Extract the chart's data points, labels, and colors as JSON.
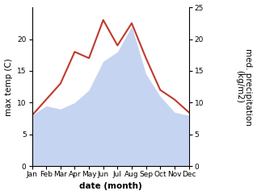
{
  "months": [
    "Jan",
    "Feb",
    "Mar",
    "Apr",
    "May",
    "Jun",
    "Jul",
    "Aug",
    "Sep",
    "Oct",
    "Nov",
    "Dec"
  ],
  "month_positions": [
    1,
    2,
    3,
    4,
    5,
    6,
    7,
    8,
    9,
    10,
    11,
    12
  ],
  "temperature": [
    8.0,
    10.5,
    13.0,
    18.0,
    17.0,
    23.0,
    19.0,
    22.5,
    17.0,
    12.0,
    10.5,
    8.5
  ],
  "precipitation": [
    8.0,
    9.5,
    9.0,
    10.0,
    12.0,
    16.5,
    18.0,
    22.0,
    14.5,
    11.0,
    8.5,
    8.0
  ],
  "temp_color": "#c0392b",
  "precip_fill_color": "#c5d4f0",
  "left_ylabel": "max temp (C)",
  "right_ylabel": "med. precipitation\n(kg/m2)",
  "xlabel": "date (month)",
  "ylim_left": [
    0,
    25
  ],
  "ylim_right": [
    0,
    25
  ],
  "yticks_left": [
    0,
    5,
    10,
    15,
    20
  ],
  "yticks_right": [
    0,
    5,
    10,
    15,
    20,
    25
  ],
  "background_color": "#ffffff",
  "temp_linewidth": 1.5,
  "label_fontsize": 7.5,
  "tick_fontsize": 6.5
}
